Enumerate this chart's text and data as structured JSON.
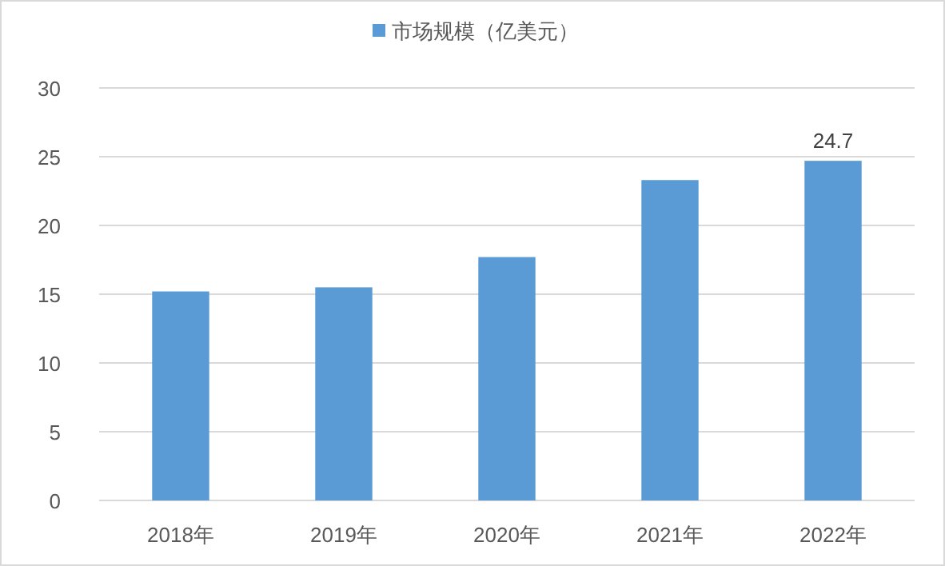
{
  "chart_data": {
    "type": "bar",
    "categories": [
      "2018年",
      "2019年",
      "2020年",
      "2021年",
      "2022年"
    ],
    "series": [
      {
        "name": "市场规模（亿美元）",
        "color": "#5b9bd5",
        "values": [
          15.2,
          15.5,
          17.7,
          23.3,
          24.7
        ]
      }
    ],
    "value_labels": [
      null,
      null,
      null,
      null,
      "24.7"
    ],
    "ylim": [
      0,
      30
    ],
    "yticks": [
      0,
      5,
      10,
      15,
      20,
      25,
      30
    ],
    "grid": "y",
    "legend": "top"
  }
}
